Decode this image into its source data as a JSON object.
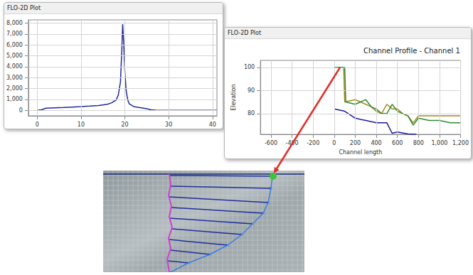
{
  "windows": [
    {
      "title": "FLO-2D Plot"
    },
    {
      "title": "FLO-2D Plot"
    }
  ],
  "chart_data": [
    {
      "type": "line",
      "grid": true,
      "x": [
        0,
        1,
        2,
        4,
        6,
        8,
        10,
        12,
        14,
        16,
        17,
        18,
        18.5,
        19,
        19.3,
        19.5,
        19.7,
        20,
        20.3,
        20.7,
        21,
        22,
        23,
        24,
        25,
        26,
        27,
        30,
        35,
        41
      ],
      "series": [
        {
          "color": "#1f2a9a",
          "values": [
            0,
            50,
            200,
            230,
            260,
            300,
            340,
            390,
            450,
            560,
            700,
            950,
            1400,
            2600,
            5500,
            7900,
            6500,
            3500,
            1800,
            900,
            600,
            350,
            280,
            220,
            150,
            60,
            20,
            0,
            0,
            0
          ]
        }
      ],
      "xlim": [
        -2,
        41
      ],
      "xticks": [
        0,
        10,
        20,
        30,
        40
      ],
      "ylim": [
        -500,
        8300
      ],
      "yticks": [
        0,
        1000,
        2000,
        3000,
        4000,
        5000,
        6000,
        7000,
        8000
      ]
    },
    {
      "type": "line",
      "grid": true,
      "title": "Channel Profile - Channel 1",
      "x_label": "Channel length",
      "y_label": "Elevation",
      "series": [
        {
          "color": "#a38a1c",
          "x": [
            0,
            90,
            100,
            200,
            300,
            350,
            400,
            450,
            500,
            550,
            600,
            650,
            700,
            750,
            800,
            900,
            1000,
            1100,
            1200
          ],
          "values": [
            100,
            100,
            85,
            86,
            84,
            83,
            81,
            80,
            84,
            82,
            82,
            80,
            79,
            76,
            79,
            79,
            79,
            79,
            79
          ]
        },
        {
          "color": "#2e8b2e",
          "x": [
            0,
            100,
            110,
            200,
            300,
            350,
            400,
            450,
            500,
            550,
            600,
            650,
            700,
            750,
            800,
            900,
            1000,
            1100,
            1200
          ],
          "values": [
            100,
            100,
            85,
            84,
            86,
            83,
            82,
            80,
            80,
            84,
            81,
            80,
            79,
            75,
            78,
            77,
            77,
            76,
            76
          ]
        },
        {
          "color": "#1a1aa0",
          "x": [
            0,
            100,
            200,
            300,
            400,
            500,
            550,
            600,
            700,
            780
          ],
          "values": [
            82,
            81,
            78,
            77,
            76,
            76,
            71.5,
            72,
            71.2,
            71
          ]
        }
      ],
      "xlim": [
        -700,
        1200
      ],
      "xticks": [
        -600,
        -400,
        -200,
        0,
        200,
        400,
        600,
        800,
        1000,
        1200
      ],
      "ylim": [
        71,
        103
      ],
      "yticks": [
        80,
        90,
        100
      ]
    }
  ]
}
